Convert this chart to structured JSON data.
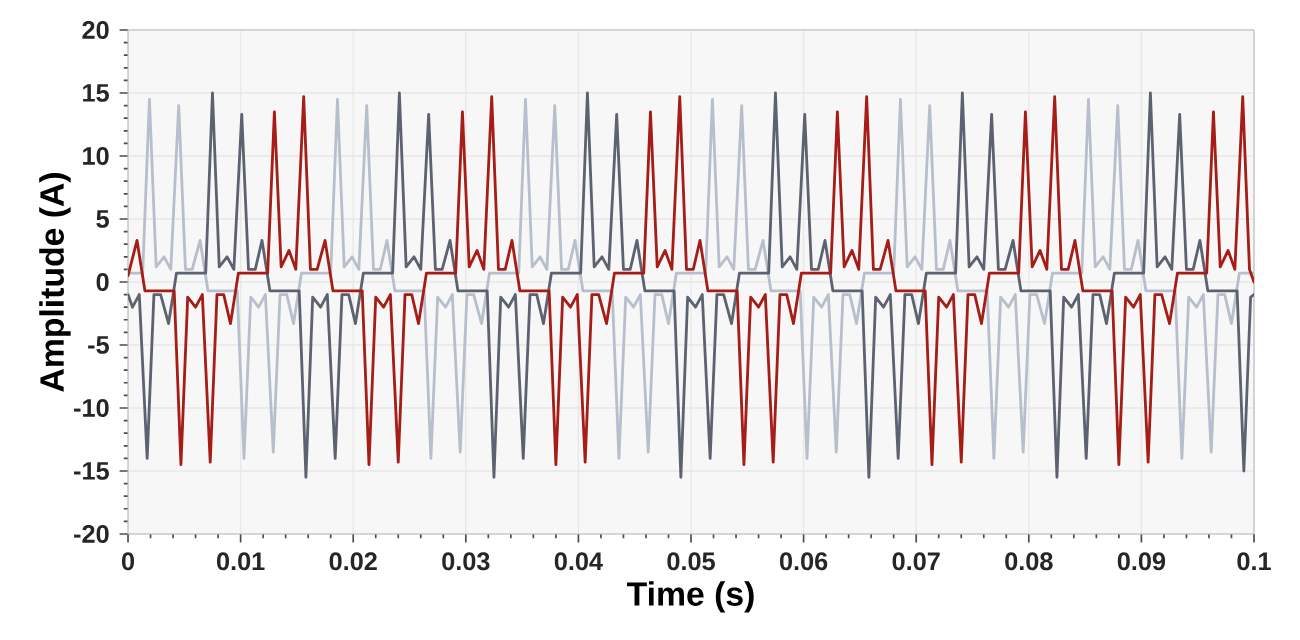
{
  "chart_data": {
    "type": "line",
    "xlabel": "Time (s)",
    "ylabel": "Amplitude (A)",
    "xlim": [
      0,
      0.1
    ],
    "ylim": [
      -20,
      20
    ],
    "xticks": [
      0,
      0.01,
      0.02,
      0.03,
      0.04,
      0.05,
      0.06,
      0.07,
      0.08,
      0.09,
      0.1
    ],
    "yticks": [
      -20,
      -15,
      -10,
      -5,
      0,
      5,
      10,
      15,
      20
    ],
    "grid": true,
    "marker": "none",
    "line_style": "solid",
    "series": [
      {
        "color": "#b7bfcc",
        "x": [
          0,
          0.0013,
          0.0019,
          0.0025,
          0.0032,
          0.0038,
          0.0045,
          0.0051,
          0.0057,
          0.0064,
          0.0071,
          0.0097,
          0.0103,
          0.0109,
          0.0116,
          0.0122,
          0.0129,
          0.0135,
          0.0141,
          0.0147,
          0.0154,
          0.018,
          0.0186,
          0.0192,
          0.0199,
          0.0205,
          0.0212,
          0.0218,
          0.0224,
          0.023,
          0.0237,
          0.0263,
          0.0269,
          0.0275,
          0.0282,
          0.0288,
          0.0295,
          0.0301,
          0.0307,
          0.0314,
          0.0321,
          0.0347,
          0.0353,
          0.0359,
          0.0366,
          0.0372,
          0.0379,
          0.0385,
          0.0391,
          0.0397,
          0.0404,
          0.043,
          0.0436,
          0.0442,
          0.0449,
          0.0455,
          0.0462,
          0.0468,
          0.0474,
          0.048,
          0.0487,
          0.0513,
          0.0519,
          0.0525,
          0.0532,
          0.0538,
          0.0545,
          0.0551,
          0.0557,
          0.0564,
          0.0571,
          0.0597,
          0.0603,
          0.0609,
          0.0616,
          0.0622,
          0.0629,
          0.0635,
          0.0641,
          0.0647,
          0.0654,
          0.068,
          0.0686,
          0.0692,
          0.0699,
          0.0705,
          0.0712,
          0.0718,
          0.0724,
          0.073,
          0.0737,
          0.0763,
          0.0769,
          0.0775,
          0.0782,
          0.0788,
          0.0795,
          0.0801,
          0.0807,
          0.0814,
          0.0821,
          0.0847,
          0.0853,
          0.0859,
          0.0866,
          0.0872,
          0.0879,
          0.0885,
          0.0891,
          0.0897,
          0.0904,
          0.093,
          0.0936,
          0.0942,
          0.0949,
          0.0955,
          0.0962,
          0.0968,
          0.0974,
          0.098,
          0.0987,
          0.1
        ],
        "values": [
          0.7,
          0.7,
          14.5,
          1.2,
          2.0,
          1.0,
          14.0,
          1.0,
          1.0,
          3.3,
          -0.7,
          -0.7,
          -14.0,
          -1.2,
          -2.0,
          -1.0,
          -13.5,
          -1.0,
          -1.0,
          -3.3,
          0.7,
          0.7,
          14.5,
          1.2,
          2.0,
          1.0,
          14.0,
          1.0,
          1.0,
          3.3,
          -0.7,
          -0.7,
          -14.0,
          -1.2,
          -2.0,
          -1.0,
          -13.5,
          -1.0,
          -1.0,
          -3.3,
          0.7,
          0.7,
          14.5,
          1.2,
          2.0,
          1.0,
          14.0,
          1.0,
          1.0,
          3.3,
          -0.7,
          -0.7,
          -14.0,
          -1.2,
          -2.0,
          -1.0,
          -13.5,
          -1.0,
          -1.0,
          -3.3,
          0.7,
          0.7,
          14.5,
          1.2,
          2.0,
          1.0,
          14.0,
          1.0,
          1.0,
          3.3,
          -0.7,
          -0.7,
          -14.0,
          -1.2,
          -2.0,
          -1.0,
          -13.5,
          -1.0,
          -1.0,
          -3.3,
          0.7,
          0.7,
          14.5,
          1.2,
          2.0,
          1.0,
          14.0,
          1.0,
          1.0,
          3.3,
          -0.7,
          -0.7,
          -14.0,
          -1.2,
          -2.0,
          -1.0,
          -13.5,
          -1.0,
          -1.0,
          -3.3,
          0.7,
          0.7,
          14.5,
          1.2,
          2.0,
          1.0,
          14.0,
          1.0,
          1.0,
          3.3,
          -0.7,
          -0.7,
          -14.0,
          -1.2,
          -2.0,
          -1.0,
          -13.5,
          -1.0,
          -1.0,
          -3.3,
          0.7,
          0.7
        ]
      },
      {
        "color": "#5d6270",
        "x": [
          0,
          0.0004,
          0.001,
          0.0017,
          0.0023,
          0.0029,
          0.0036,
          0.0043,
          0.0069,
          0.0075,
          0.0081,
          0.0088,
          0.0094,
          0.0101,
          0.0107,
          0.0113,
          0.0119,
          0.0126,
          0.0152,
          0.0158,
          0.0164,
          0.0171,
          0.0177,
          0.0184,
          0.019,
          0.0196,
          0.0202,
          0.0209,
          0.0235,
          0.0241,
          0.0247,
          0.0254,
          0.026,
          0.0267,
          0.0273,
          0.0279,
          0.0286,
          0.0293,
          0.0319,
          0.0325,
          0.0331,
          0.0338,
          0.0344,
          0.0351,
          0.0357,
          0.0363,
          0.0369,
          0.0376,
          0.0402,
          0.0408,
          0.0414,
          0.0421,
          0.0427,
          0.0434,
          0.044,
          0.0446,
          0.0452,
          0.0459,
          0.0485,
          0.0491,
          0.0497,
          0.0504,
          0.051,
          0.0517,
          0.0523,
          0.0529,
          0.0536,
          0.0543,
          0.0569,
          0.0575,
          0.0581,
          0.0588,
          0.0594,
          0.0601,
          0.0607,
          0.0613,
          0.0619,
          0.0626,
          0.0652,
          0.0658,
          0.0664,
          0.0671,
          0.0677,
          0.0684,
          0.069,
          0.0696,
          0.0702,
          0.0709,
          0.0735,
          0.0741,
          0.0747,
          0.0754,
          0.076,
          0.0767,
          0.0773,
          0.0779,
          0.0786,
          0.0793,
          0.0819,
          0.0825,
          0.0831,
          0.0838,
          0.0844,
          0.0851,
          0.0857,
          0.0863,
          0.0869,
          0.0876,
          0.0902,
          0.0908,
          0.0914,
          0.0921,
          0.0927,
          0.0934,
          0.094,
          0.0946,
          0.0952,
          0.0959,
          0.0985,
          0.0991,
          0.0997,
          0.1
        ],
        "values": [
          -1.0,
          -2.0,
          -1.0,
          -14.0,
          -1.0,
          -1.0,
          -3.3,
          0.7,
          0.7,
          15.0,
          1.2,
          2.0,
          1.0,
          13.3,
          1.0,
          1.0,
          3.3,
          -0.7,
          -0.7,
          -15.5,
          -1.2,
          -2.0,
          -1.0,
          -14.0,
          -1.0,
          -1.0,
          -3.3,
          0.7,
          0.7,
          15.0,
          1.2,
          2.0,
          1.0,
          13.3,
          1.0,
          1.0,
          3.3,
          -0.7,
          -0.7,
          -15.5,
          -1.2,
          -2.0,
          -1.0,
          -14.0,
          -1.0,
          -1.0,
          -3.3,
          0.7,
          0.7,
          15.0,
          1.2,
          2.0,
          1.0,
          13.3,
          1.0,
          1.0,
          3.3,
          -0.7,
          -0.7,
          -15.5,
          -1.2,
          -2.0,
          -1.0,
          -14.0,
          -1.0,
          -1.0,
          -3.3,
          0.7,
          0.7,
          15.0,
          1.2,
          2.0,
          1.0,
          13.3,
          1.0,
          1.0,
          3.3,
          -0.7,
          -0.7,
          -15.5,
          -1.2,
          -2.0,
          -1.0,
          -14.0,
          -1.0,
          -1.0,
          -3.3,
          0.7,
          0.7,
          15.0,
          1.2,
          2.0,
          1.0,
          13.3,
          1.0,
          1.0,
          3.3,
          -0.7,
          -0.7,
          -15.5,
          -1.2,
          -2.0,
          -1.0,
          -14.0,
          -1.0,
          -1.0,
          -3.3,
          0.7,
          0.7,
          15.0,
          1.2,
          2.0,
          1.0,
          13.3,
          1.0,
          1.0,
          3.3,
          -0.7,
          -0.7,
          -15.0,
          -1.2,
          -1.0
        ]
      },
      {
        "color": "#a51d16",
        "x": [
          0,
          0.0008,
          0.0015,
          0.0041,
          0.0047,
          0.0053,
          0.006,
          0.0066,
          0.0073,
          0.0079,
          0.0085,
          0.0091,
          0.0098,
          0.0124,
          0.013,
          0.0136,
          0.0143,
          0.0149,
          0.0156,
          0.0162,
          0.0168,
          0.0175,
          0.0182,
          0.0208,
          0.0214,
          0.022,
          0.0227,
          0.0233,
          0.024,
          0.0246,
          0.0252,
          0.0258,
          0.0265,
          0.0291,
          0.0297,
          0.0303,
          0.031,
          0.0316,
          0.0323,
          0.0329,
          0.0335,
          0.0341,
          0.0348,
          0.0374,
          0.038,
          0.0386,
          0.0393,
          0.0399,
          0.0406,
          0.0412,
          0.0418,
          0.0425,
          0.0432,
          0.0458,
          0.0464,
          0.047,
          0.0477,
          0.0483,
          0.049,
          0.0496,
          0.0502,
          0.0508,
          0.0515,
          0.0541,
          0.0547,
          0.0553,
          0.056,
          0.0566,
          0.0573,
          0.0579,
          0.0585,
          0.0591,
          0.0598,
          0.0624,
          0.063,
          0.0636,
          0.0643,
          0.0649,
          0.0656,
          0.0662,
          0.0668,
          0.0675,
          0.0682,
          0.0708,
          0.0714,
          0.072,
          0.0727,
          0.0733,
          0.074,
          0.0746,
          0.0752,
          0.0758,
          0.0765,
          0.0791,
          0.0797,
          0.0803,
          0.081,
          0.0816,
          0.0823,
          0.0829,
          0.0835,
          0.0841,
          0.0848,
          0.0874,
          0.088,
          0.0886,
          0.0893,
          0.0899,
          0.0906,
          0.0912,
          0.0918,
          0.0925,
          0.0932,
          0.0958,
          0.0964,
          0.097,
          0.0977,
          0.0983,
          0.099,
          0.0996,
          0.1
        ],
        "values": [
          0.5,
          3.3,
          -0.7,
          -0.7,
          -14.5,
          -1.2,
          -2.0,
          -1.0,
          -14.3,
          -1.0,
          -1.0,
          -3.3,
          0.7,
          0.7,
          13.5,
          1.2,
          2.5,
          1.0,
          14.7,
          1.0,
          1.0,
          3.3,
          -0.7,
          -0.7,
          -14.5,
          -1.2,
          -2.0,
          -1.0,
          -14.3,
          -1.0,
          -1.0,
          -3.3,
          0.7,
          0.7,
          13.5,
          1.2,
          2.5,
          1.0,
          14.7,
          1.0,
          1.0,
          3.3,
          -0.7,
          -0.7,
          -14.5,
          -1.2,
          -2.0,
          -1.0,
          -14.3,
          -1.0,
          -1.0,
          -3.3,
          0.7,
          0.7,
          13.5,
          1.2,
          2.5,
          1.0,
          14.7,
          1.0,
          1.0,
          3.3,
          -0.7,
          -0.7,
          -14.5,
          -1.2,
          -2.0,
          -1.0,
          -14.3,
          -1.0,
          -1.0,
          -3.3,
          0.7,
          0.7,
          13.5,
          1.2,
          2.5,
          1.0,
          14.7,
          1.0,
          1.0,
          3.3,
          -0.7,
          -0.7,
          -14.5,
          -1.2,
          -2.0,
          -1.0,
          -14.3,
          -1.0,
          -1.0,
          -3.3,
          0.7,
          0.7,
          13.5,
          1.2,
          2.5,
          1.0,
          14.7,
          1.0,
          1.0,
          3.3,
          -0.7,
          -0.7,
          -14.5,
          -1.2,
          -2.0,
          -1.0,
          -14.3,
          -1.0,
          -1.0,
          -3.3,
          0.7,
          0.7,
          13.5,
          1.2,
          2.5,
          1.0,
          14.7,
          1.0,
          0.0
        ]
      }
    ]
  }
}
